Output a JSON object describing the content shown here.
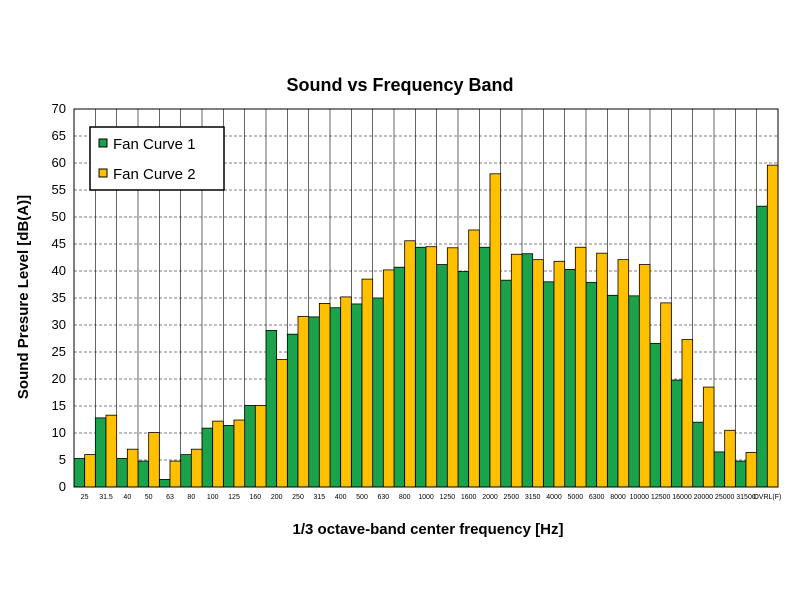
{
  "chart_data": {
    "type": "bar",
    "title": "Sound vs Frequency Band",
    "xlabel": "1/3 octave-band center frequency [Hz]",
    "ylabel": "Sound Presure Level [dB(A)]",
    "ylim": [
      0,
      70
    ],
    "yticks": [
      0,
      5,
      10,
      15,
      20,
      25,
      30,
      35,
      40,
      45,
      50,
      55,
      60,
      65,
      70
    ],
    "grid": true,
    "legend_position": "top-left",
    "categories": [
      "25",
      "31.5",
      "40",
      "50",
      "63",
      "80",
      "100",
      "125",
      "160",
      "200",
      "250",
      "315",
      "400",
      "500",
      "630",
      "800",
      "1000",
      "1250",
      "1600",
      "2000",
      "2500",
      "3150",
      "4000",
      "5000",
      "6300",
      "8000",
      "10000",
      "12500",
      "16000",
      "20000",
      "25000",
      "31500",
      "OVRL(F)"
    ],
    "series": [
      {
        "name": "Fan Curve 1",
        "color": "#1aa34a",
        "values": [
          5.3,
          12.8,
          5.3,
          4.8,
          1.4,
          6.0,
          10.9,
          11.4,
          15.1,
          29.0,
          28.3,
          31.5,
          33.2,
          33.9,
          35.0,
          40.7,
          44.4,
          41.2,
          39.9,
          44.4,
          38.3,
          43.2,
          38.0,
          40.3,
          37.9,
          35.5,
          35.4,
          26.6,
          19.8,
          12.0,
          6.5,
          4.8,
          52.0
        ]
      },
      {
        "name": "Fan Curve 2",
        "color": "#ffc000",
        "values": [
          6.0,
          13.3,
          7.0,
          10.1,
          4.8,
          7.0,
          12.2,
          12.4,
          15.1,
          23.6,
          31.6,
          34.0,
          35.2,
          38.5,
          40.2,
          45.6,
          44.5,
          44.3,
          47.6,
          58.0,
          43.1,
          42.1,
          41.8,
          44.4,
          43.3,
          42.1,
          41.2,
          34.1,
          27.3,
          18.5,
          10.5,
          6.4,
          59.6
        ]
      }
    ]
  }
}
